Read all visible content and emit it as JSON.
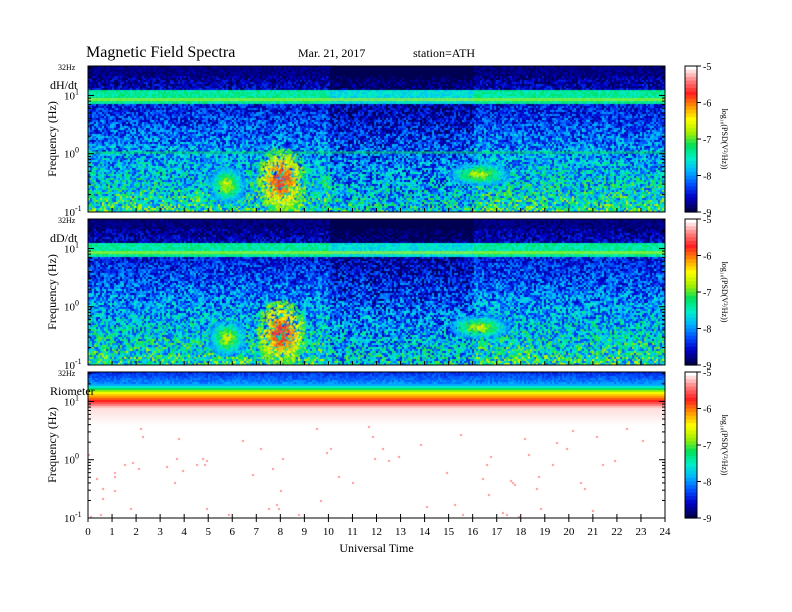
{
  "header": {
    "title": "Magnetic  Field  Spectra",
    "date": "Mar. 21, 2017",
    "station": "station=ATH"
  },
  "colors": {
    "colormap": [
      "#000050",
      "#0000c8",
      "#0050ff",
      "#00b4ff",
      "#00f0c8",
      "#00e05a",
      "#a8f000",
      "#ffff00",
      "#ff9600",
      "#ff1e1e",
      "#ff8080",
      "#ffffff"
    ],
    "background": "#ffffff"
  },
  "chart_data": [
    {
      "type": "heatmap",
      "panel_label": "dH/dt",
      "top_label": "32Hz",
      "ylabel": "Frequency  (Hz)",
      "yscale": "log",
      "ylim": [
        0.1,
        32
      ],
      "yticks": [
        {
          "value": 0.1,
          "base": "10",
          "exp": "-1"
        },
        {
          "value": 1,
          "base": "10",
          "exp": "0"
        },
        {
          "value": 10,
          "base": "10",
          "exp": "1"
        }
      ],
      "xlim": [
        0,
        24
      ],
      "colorbar": {
        "label": "log₁₀(PSD(V²/Hz))",
        "ticks": [
          -5,
          -6,
          -7,
          -8,
          -9
        ],
        "range": [
          -9,
          -5
        ]
      },
      "features": [
        {
          "time": [
            7.0,
            9.0
          ],
          "freq": [
            0.1,
            1.3
          ],
          "log_psd": -5.5
        },
        {
          "time": [
            5.0,
            6.5
          ],
          "freq": [
            0.15,
            0.6
          ],
          "log_psd": -6.5
        },
        {
          "time": [
            15.0,
            17.5
          ],
          "freq": [
            0.3,
            0.7
          ],
          "log_psd": -6.5
        },
        {
          "time": [
            0,
            24
          ],
          "freq": [
            8,
            9
          ],
          "log_psd": -7.0
        },
        {
          "time": [
            0,
            24
          ],
          "freq": [
            1.0,
            1.1
          ],
          "log_psd": -7.5
        }
      ]
    },
    {
      "type": "heatmap",
      "panel_label": "dD/dt",
      "top_label": "32Hz",
      "ylabel": "Frequency  (Hz)",
      "yscale": "log",
      "ylim": [
        0.1,
        32
      ],
      "yticks": [
        {
          "value": 0.1,
          "base": "10",
          "exp": "-1"
        },
        {
          "value": 1,
          "base": "10",
          "exp": "0"
        },
        {
          "value": 10,
          "base": "10",
          "exp": "1"
        }
      ],
      "xlim": [
        0,
        24
      ],
      "colorbar": {
        "label": "log₁₀(PSD(V²/Hz))",
        "ticks": [
          -5,
          -6,
          -7,
          -8,
          -9
        ],
        "range": [
          -9,
          -5
        ]
      },
      "features": [
        {
          "time": [
            7.0,
            9.0
          ],
          "freq": [
            0.1,
            1.3
          ],
          "log_psd": -5.5
        },
        {
          "time": [
            5.0,
            6.5
          ],
          "freq": [
            0.15,
            0.6
          ],
          "log_psd": -6.5
        },
        {
          "time": [
            15.0,
            17.5
          ],
          "freq": [
            0.3,
            0.7
          ],
          "log_psd": -6.5
        },
        {
          "time": [
            0,
            24
          ],
          "freq": [
            8,
            9
          ],
          "log_psd": -7.0
        }
      ]
    },
    {
      "type": "heatmap",
      "panel_label": "Riometer",
      "top_label": "32Hz",
      "ylabel": "Frequency  (Hz)",
      "yscale": "log",
      "ylim": [
        0.1,
        32
      ],
      "yticks": [
        {
          "value": 0.1,
          "base": "10",
          "exp": "-1"
        },
        {
          "value": 1,
          "base": "10",
          "exp": "0"
        },
        {
          "value": 10,
          "base": "10",
          "exp": "1"
        }
      ],
      "xlim": [
        0,
        24
      ],
      "xticks": [
        0,
        1,
        2,
        3,
        4,
        5,
        6,
        7,
        8,
        9,
        10,
        11,
        12,
        13,
        14,
        15,
        16,
        17,
        18,
        19,
        20,
        21,
        22,
        23,
        24
      ],
      "xlabel": "Universal Time",
      "colorbar": {
        "label": "log₁₀(PSD(V²/Hz))",
        "ticks": [
          -5,
          -6,
          -7,
          -8,
          -9
        ],
        "range": [
          -9,
          -5
        ]
      },
      "features": [
        {
          "time": [
            0,
            24
          ],
          "freq": [
            20,
            32
          ],
          "log_psd": -8.3
        },
        {
          "time": [
            0,
            24
          ],
          "freq": [
            10,
            20
          ],
          "log_psd": -7.0
        },
        {
          "time": [
            0,
            24
          ],
          "freq": [
            3,
            10
          ],
          "log_psd": -5.5
        }
      ]
    }
  ]
}
